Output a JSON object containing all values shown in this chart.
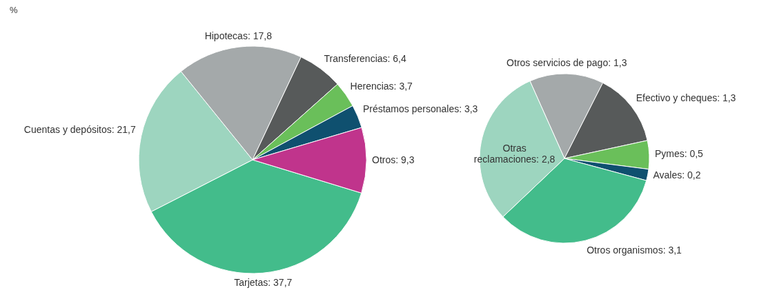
{
  "chart_data": [
    {
      "type": "pie",
      "title": "%",
      "categories": [
        "Tarjetas",
        "Cuentas y depósitos",
        "Hipotecas",
        "Transferencias",
        "Herencias",
        "Préstamos personales",
        "Otros"
      ],
      "values": [
        37.7,
        21.7,
        17.8,
        6.4,
        3.7,
        3.3,
        9.3
      ],
      "value_labels": [
        "37,7",
        "21,7",
        "17,8",
        "6,4",
        "3,7",
        "3,3",
        "9,3"
      ],
      "colors": [
        "#43bc8b",
        "#9dd5bf",
        "#a4a9aa",
        "#575a5a",
        "#6abf5a",
        "#0f506f",
        "#c0348c"
      ]
    },
    {
      "type": "pie",
      "categories": [
        "Otros servicios de pago",
        "Efectivo y cheques",
        "Pymes",
        "Avales",
        "Otros organismos",
        "Otras reclamaciones"
      ],
      "values": [
        1.3,
        1.3,
        0.5,
        0.2,
        3.1,
        2.8
      ],
      "value_labels": [
        "1,3",
        "1,3",
        "0,5",
        "0,2",
        "3,1",
        "2,8"
      ],
      "colors": [
        "#a4a9aa",
        "#575a5a",
        "#6abf5a",
        "#0f506f",
        "#43bc8b",
        "#9dd5bf"
      ]
    }
  ]
}
